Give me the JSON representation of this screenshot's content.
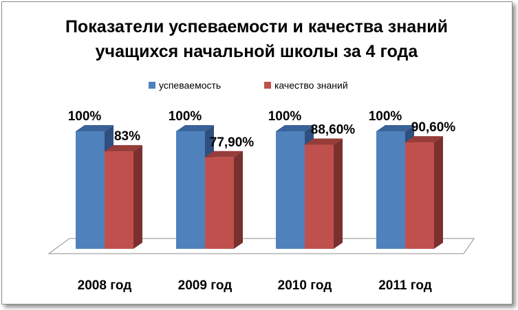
{
  "chart_data": {
    "type": "bar",
    "title_line1": "Показатели успеваемости и качества знаний",
    "title_line2": "учащихся начальной школы за 4 года",
    "categories": [
      "2008 год",
      "2009 год",
      "2010 год",
      "2011 год"
    ],
    "series": [
      {
        "name": "успеваемость",
        "values": [
          100,
          100,
          100,
          100
        ],
        "labels": [
          "100%",
          "100%",
          "100%",
          "100%"
        ],
        "color": "#4f81bd",
        "top_color": "#3a6399",
        "side_color": "#2f4f7f"
      },
      {
        "name": "качество знаний",
        "values": [
          83,
          77.9,
          88.6,
          90.6
        ],
        "labels": [
          "83%",
          "77,90%",
          "88,60%",
          "90,60%"
        ],
        "color": "#c0504d",
        "top_color": "#963c39",
        "side_color": "#7a302e"
      }
    ],
    "ylim": [
      0,
      100
    ],
    "legend_position": "top",
    "grid": false,
    "three_d": true
  }
}
